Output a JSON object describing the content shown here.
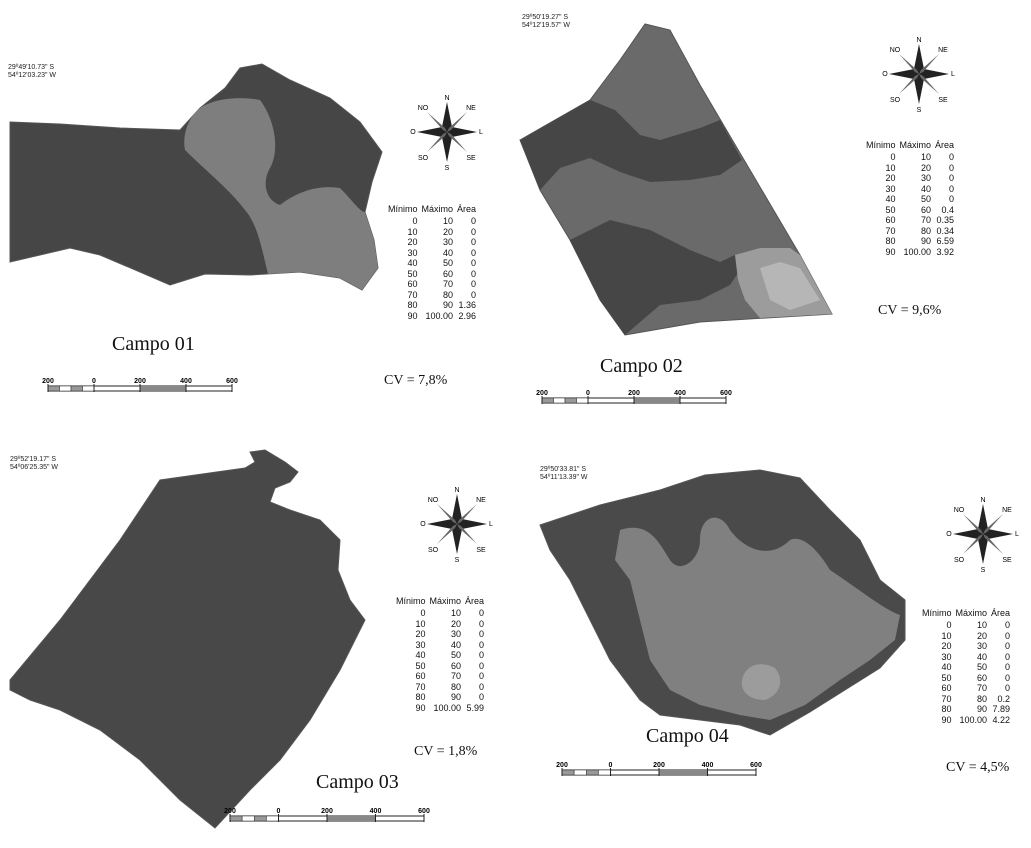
{
  "legend_header": {
    "min": "Mínimo",
    "max": "Máximo",
    "area": "Área"
  },
  "legend_classes": [
    {
      "min": "0",
      "max": "10"
    },
    {
      "min": "10",
      "max": "20"
    },
    {
      "min": "20",
      "max": "30"
    },
    {
      "min": "30",
      "max": "40"
    },
    {
      "min": "40",
      "max": "50"
    },
    {
      "min": "50",
      "max": "60"
    },
    {
      "min": "60",
      "max": "70"
    },
    {
      "min": "70",
      "max": "80"
    },
    {
      "min": "80",
      "max": "90"
    },
    {
      "min": "90",
      "max": "100.00"
    }
  ],
  "legend_colors": [
    "#1e1e1e",
    "#333333",
    "#585858",
    "#8c8c8c",
    "#f6f6f6",
    "#b4b4b4",
    "#a4a4a4",
    "#8e8e8e",
    "#6e6e6e",
    "#444444"
  ],
  "compass": {
    "n": "N",
    "ne": "NE",
    "l": "L",
    "se": "SE",
    "s": "S",
    "so": "SO",
    "o": "O",
    "no": "NO"
  },
  "scale_ticks": [
    "200",
    "0",
    "200",
    "400",
    "600"
  ],
  "fields": [
    {
      "label": "Campo 01",
      "cv": "CV = 7,8%",
      "lat": "29º49'10.73\" S",
      "lon": "54º12'03.23\" W",
      "areas": [
        "0",
        "0",
        "0",
        "0",
        "0",
        "0",
        "0",
        "0",
        "1.36",
        "2.96"
      ]
    },
    {
      "label": "Campo 02",
      "cv": "CV = 9,6%",
      "lat": "29º50'19.27\" S",
      "lon": "54º12'19.57\" W",
      "areas": [
        "0",
        "0",
        "0",
        "0",
        "0",
        "0.4",
        "0.35",
        "0.34",
        "6.59",
        "3.92"
      ]
    },
    {
      "label": "Campo 03",
      "cv": "CV = 1,8%",
      "lat": "29º52'19.17\" S",
      "lon": "54º06'25.35\" W",
      "areas": [
        "0",
        "0",
        "0",
        "0",
        "0",
        "0",
        "0",
        "0",
        "0",
        "5.99"
      ]
    },
    {
      "label": "Campo 04",
      "cv": "CV = 4,5%",
      "lat": "29º50'33.81\" S",
      "lon": "54º11'13.39\" W",
      "areas": [
        "0",
        "0",
        "0",
        "0",
        "0",
        "0",
        "0",
        "0.2",
        "7.89",
        "4.22"
      ]
    }
  ]
}
